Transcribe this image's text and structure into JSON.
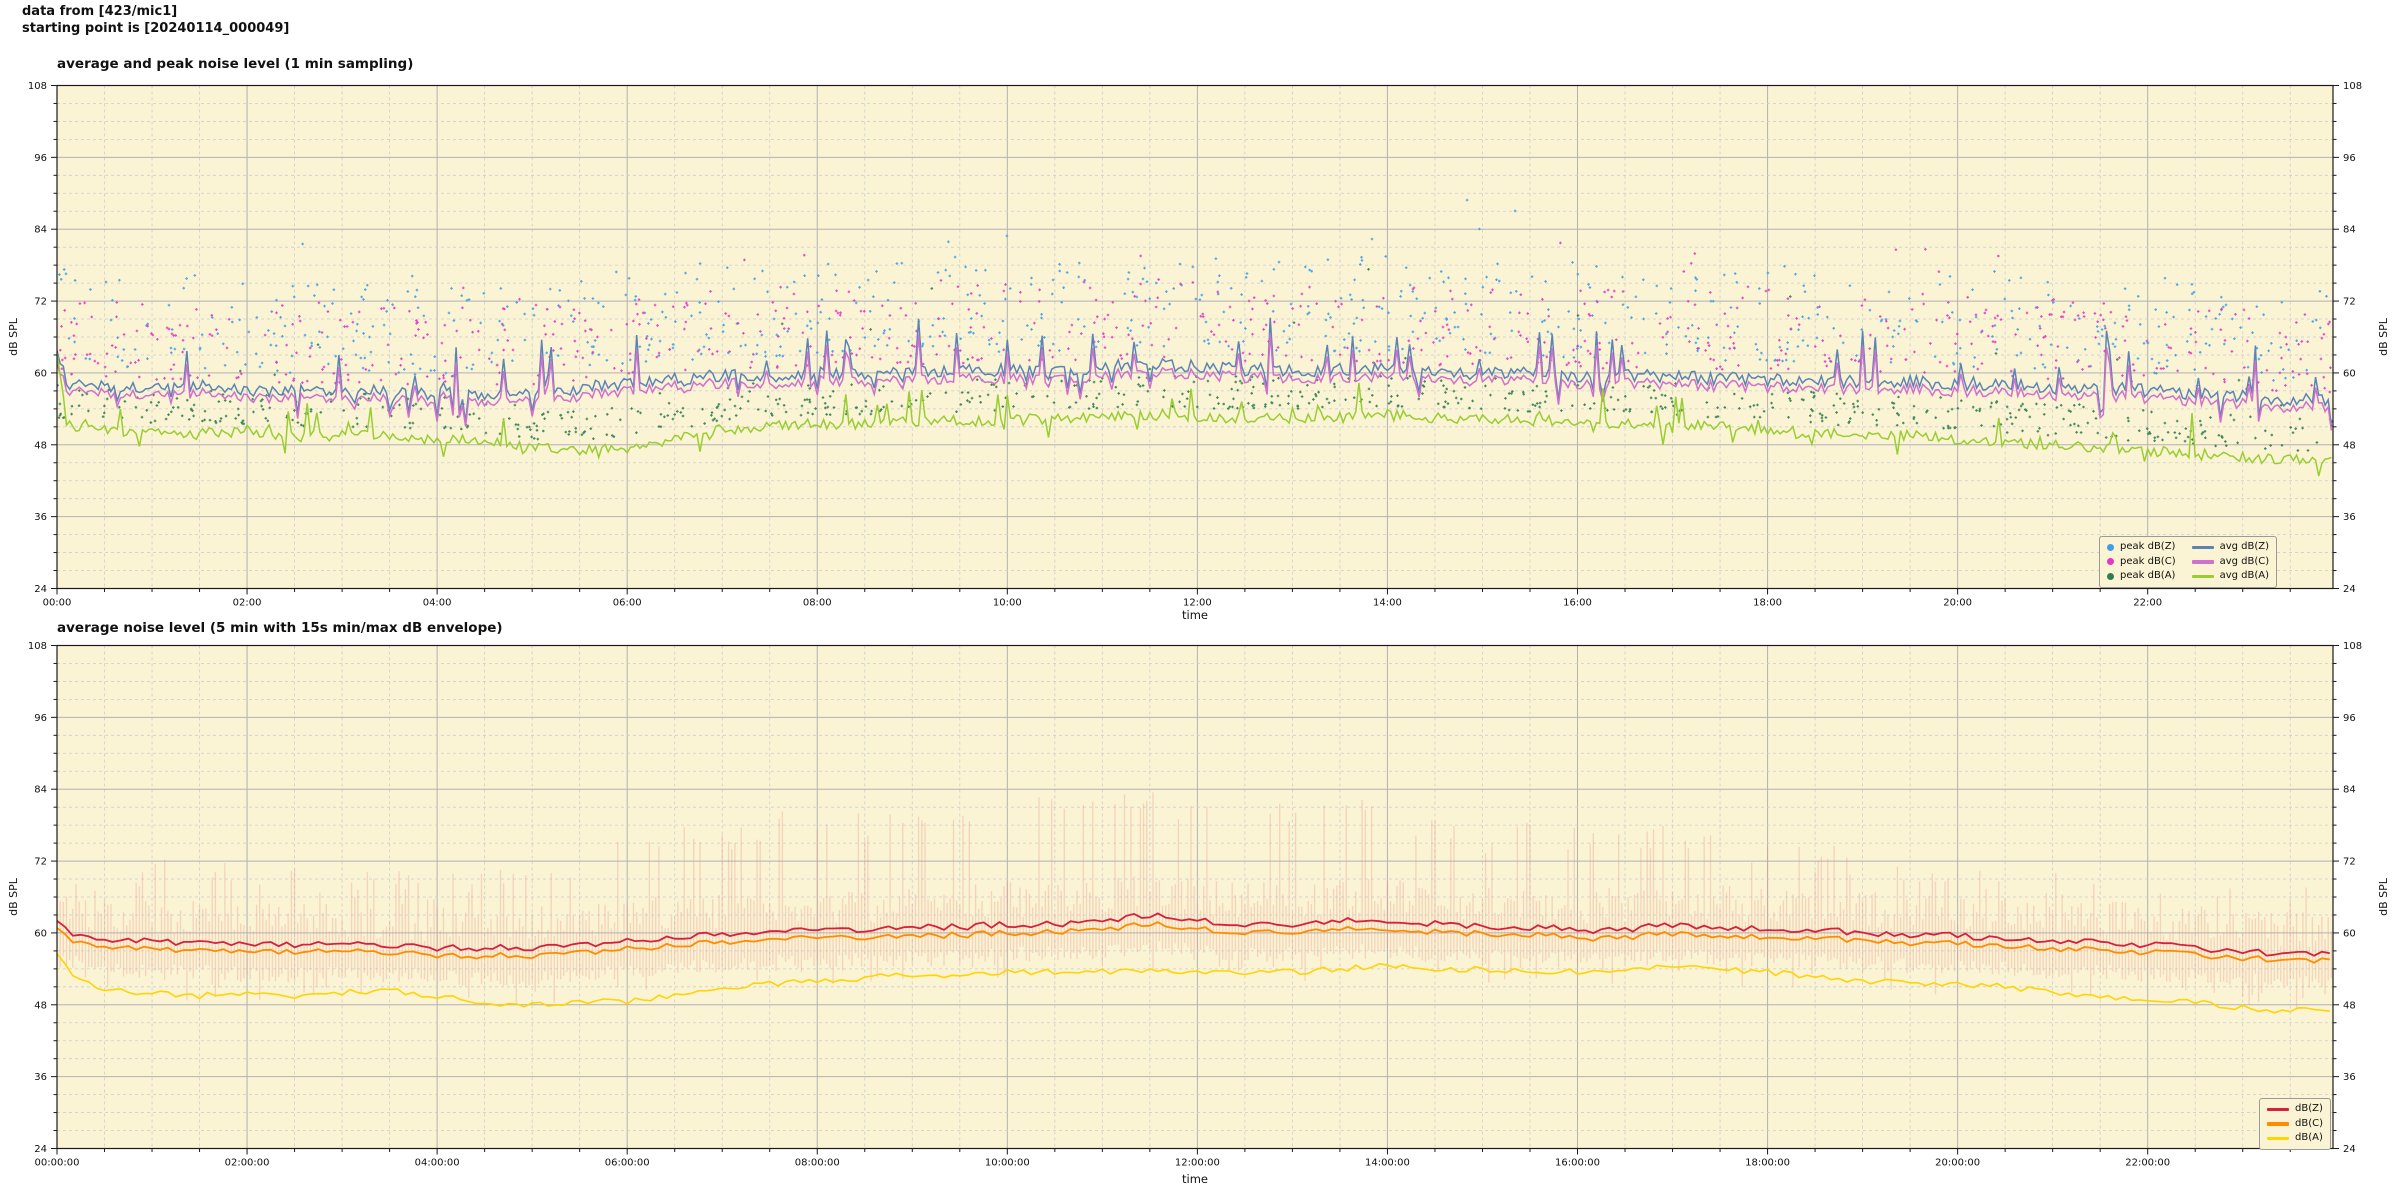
{
  "header": {
    "line1": "data from [423/mic1]",
    "line2": "starting point is [20240114_000049]"
  },
  "colors": {
    "figure_bg": "#ffffff",
    "plot_bg": "#faf3d4",
    "grid_major": "#b2b2b2",
    "grid_minor": "#cdcdcd",
    "axis": "#1a1a1a",
    "peak_z": "#3d9fe8",
    "peak_c": "#e336c6",
    "peak_a": "#2f7d51",
    "avg_z": "#5b84b4",
    "avg_c": "#d070cc",
    "avg_a": "#9acd32",
    "db_z": "#d5213e",
    "db_c": "#ff8c00",
    "db_a": "#ffd403",
    "envelope": "#e8968d"
  },
  "charts": [
    {
      "title": "average and peak noise level (1 min sampling)",
      "xlabel": "time",
      "ylabel_left": "dB SPL",
      "ylabel_right": "dB SPL",
      "yticks": [
        108,
        96,
        84,
        72,
        60,
        48,
        36,
        24
      ],
      "xticks": {
        "hours": [
          0,
          2,
          4,
          6,
          8,
          10,
          12,
          14,
          16,
          18,
          20,
          22
        ],
        "labels": [
          "00:00",
          "02:00",
          "04:00",
          "06:00",
          "08:00",
          "10:00",
          "12:00",
          "14:00",
          "16:00",
          "18:00",
          "20:00",
          "22:00"
        ]
      },
      "legend": {
        "scatter": [
          "peak dB(Z)",
          "peak dB(C)",
          "peak dB(A)"
        ],
        "lines": [
          "avg dB(Z)",
          "avg dB(C)",
          "avg dB(A)"
        ]
      }
    },
    {
      "title": "average noise level (5 min with 15s min/max dB envelope)",
      "xlabel": "time",
      "ylabel_left": "dB SPL",
      "ylabel_right": "dB SPL",
      "yticks": [
        108,
        96,
        84,
        72,
        60,
        48,
        36,
        24
      ],
      "xticks": {
        "hours": [
          0,
          2,
          4,
          6,
          8,
          10,
          12,
          14,
          16,
          18,
          20,
          22
        ],
        "labels": [
          "00:00:00",
          "02:00:00",
          "04:00:00",
          "06:00:00",
          "08:00:00",
          "10:00:00",
          "12:00:00",
          "14:00:00",
          "16:00:00",
          "18:00:00",
          "20:00:00",
          "22:00:00"
        ]
      },
      "legend": {
        "lines": [
          "dB(Z)",
          "dB(C)",
          "dB(A)"
        ]
      }
    }
  ],
  "chart_data": [
    {
      "type": "line+scatter",
      "title": "average and peak noise level (1 min sampling)",
      "xlabel": "time",
      "ylabel": "dB SPL",
      "ylim": [
        24,
        108
      ],
      "ytick_step": 12,
      "y_minor_step": 3,
      "x_hours_span": 23.95,
      "x_step_hours": 0.5,
      "grid": true,
      "legend_position": "lower right",
      "line_series": [
        {
          "name": "avg dB(Z)",
          "color_key": "avg_z",
          "jitter": 1.1,
          "spike_prob": 0.1,
          "spike_max": 9,
          "values": [
            58.5,
            57.5,
            57.5,
            57.8,
            57.2,
            57.0,
            57.0,
            56.8,
            56.5,
            56.5,
            56.8,
            57.5,
            58.0,
            59.0,
            59.5,
            59.5,
            60.0,
            60.0,
            60.0,
            60.5,
            60.5,
            60.5,
            61.0,
            61.5,
            61.0,
            60.5,
            60.5,
            60.5,
            60.5,
            60.0,
            60.0,
            60.0,
            59.5,
            59.5,
            59.5,
            59.0,
            59.0,
            58.5,
            58.5,
            58.5,
            58.0,
            58.0,
            57.5,
            57.5,
            57.0,
            56.5,
            56.0,
            55.5
          ]
        },
        {
          "name": "avg dB(C)",
          "color_key": "avg_c",
          "jitter": 0.95,
          "spike_prob": 0.1,
          "spike_max": 8,
          "values": [
            57.4,
            56.4,
            56.3,
            56.6,
            56.0,
            55.8,
            55.8,
            55.6,
            55.3,
            55.3,
            55.6,
            56.2,
            56.8,
            57.8,
            58.2,
            58.2,
            58.7,
            58.7,
            58.7,
            59.1,
            59.1,
            59.1,
            59.6,
            60.1,
            59.7,
            59.2,
            59.2,
            59.2,
            59.2,
            58.8,
            58.8,
            58.8,
            58.2,
            58.2,
            58.2,
            57.8,
            57.8,
            57.3,
            57.3,
            57.3,
            56.8,
            56.8,
            56.3,
            56.2,
            55.8,
            55.3,
            54.8,
            54.3
          ]
        },
        {
          "name": "avg dB(A)",
          "color_key": "avg_a",
          "jitter": 0.9,
          "spike_prob": 0.05,
          "spike_max": 6,
          "values": [
            51.0,
            50.5,
            50.0,
            50.0,
            50.0,
            49.5,
            49.5,
            49.5,
            49.0,
            48.5,
            47.5,
            47.0,
            47.5,
            49.0,
            50.5,
            51.0,
            51.5,
            51.5,
            52.0,
            52.0,
            52.0,
            52.5,
            52.5,
            53.0,
            52.5,
            52.5,
            52.5,
            52.5,
            53.0,
            52.5,
            52.5,
            52.0,
            52.0,
            51.5,
            51.5,
            51.0,
            50.5,
            50.0,
            49.5,
            49.5,
            49.0,
            48.5,
            48.0,
            47.5,
            47.0,
            46.5,
            46.0,
            45.5
          ]
        }
      ],
      "scatter_series": [
        {
          "name": "peak dB(Z)",
          "color_key": "peak_z",
          "base": 0,
          "offset_min": 3.0,
          "offset_max": 19,
          "outlier_prob": 0.05,
          "outlier_extra": 14,
          "count": 720
        },
        {
          "name": "peak dB(C)",
          "color_key": "peak_c",
          "base": 1,
          "offset_min": 2.5,
          "offset_max": 16,
          "outlier_prob": 0.05,
          "outlier_extra": 12,
          "count": 720
        },
        {
          "name": "peak dB(A)",
          "color_key": "peak_a",
          "base": 2,
          "offset_min": 1.5,
          "offset_max": 7,
          "outlier_prob": 0.03,
          "outlier_extra": 18,
          "count": 740
        }
      ]
    },
    {
      "type": "line+envelope",
      "title": "average noise level (5 min with 15s min/max dB envelope)",
      "xlabel": "time",
      "ylabel": "dB SPL",
      "ylim": [
        24,
        108
      ],
      "ytick_step": 12,
      "y_minor_step": 3,
      "x_hours_span": 23.95,
      "x_step_hours": 0.5,
      "grid": true,
      "legend_position": "lower right",
      "line_series": [
        {
          "name": "dB(Z)",
          "color_key": "db_z",
          "jitter": 0.55,
          "values": [
            60.5,
            59.0,
            58.5,
            58.5,
            58.0,
            58.0,
            58.0,
            58.0,
            57.5,
            57.5,
            57.5,
            58.0,
            58.5,
            59.5,
            59.5,
            60.0,
            60.5,
            60.5,
            61.0,
            61.0,
            61.5,
            61.5,
            62.0,
            63.0,
            62.0,
            61.5,
            61.5,
            62.0,
            62.0,
            61.5,
            61.0,
            61.0,
            60.5,
            60.5,
            61.5,
            61.0,
            60.5,
            60.5,
            60.0,
            59.5,
            59.5,
            59.0,
            58.5,
            58.5,
            58.0,
            57.5,
            57.0,
            56.5
          ]
        },
        {
          "name": "dB(C)",
          "color_key": "db_c",
          "jitter": 0.5,
          "values": [
            59.3,
            57.8,
            57.2,
            57.2,
            56.8,
            56.8,
            56.8,
            56.8,
            56.2,
            56.2,
            56.2,
            56.8,
            57.2,
            58.2,
            58.2,
            58.8,
            59.2,
            59.2,
            59.6,
            59.6,
            60.2,
            60.2,
            60.6,
            61.5,
            60.6,
            60.2,
            60.2,
            60.6,
            60.6,
            60.2,
            59.8,
            59.8,
            59.2,
            59.2,
            60.0,
            59.6,
            59.2,
            59.2,
            58.8,
            58.2,
            58.2,
            57.8,
            57.2,
            57.2,
            56.8,
            56.4,
            55.8,
            55.4
          ]
        },
        {
          "name": "dB(A)",
          "color_key": "db_a",
          "jitter": 0.5,
          "values": [
            54.0,
            50.5,
            50.0,
            49.5,
            50.0,
            49.5,
            50.0,
            50.5,
            49.5,
            48.0,
            48.0,
            48.5,
            48.5,
            49.5,
            51.0,
            51.5,
            52.0,
            52.5,
            53.0,
            53.0,
            53.5,
            53.5,
            53.5,
            54.0,
            53.5,
            53.5,
            53.5,
            54.0,
            54.5,
            54.0,
            54.0,
            53.5,
            53.5,
            54.0,
            54.5,
            54.0,
            53.5,
            52.5,
            52.0,
            51.5,
            51.5,
            51.0,
            50.0,
            49.5,
            49.0,
            48.5,
            47.5,
            47.0
          ]
        },
        {
          "name": "envelope max (15s)",
          "color_key": "envelope",
          "jitter": 0,
          "values": [
            68,
            70,
            72,
            74,
            72,
            73,
            70,
            72,
            70,
            71,
            72,
            74,
            76,
            80,
            78,
            80,
            82,
            80,
            83,
            82,
            84,
            83,
            85,
            84,
            82,
            83,
            82,
            84,
            82,
            80,
            78,
            79,
            78,
            77,
            79,
            78,
            76,
            75,
            74,
            73,
            72,
            72,
            71,
            70,
            70,
            69,
            68,
            68
          ]
        }
      ],
      "envelope": {
        "color_key": "envelope",
        "alpha": 0.34,
        "min_below_dbc": 2.5,
        "tall_spike_prob": 0.2
      }
    }
  ]
}
